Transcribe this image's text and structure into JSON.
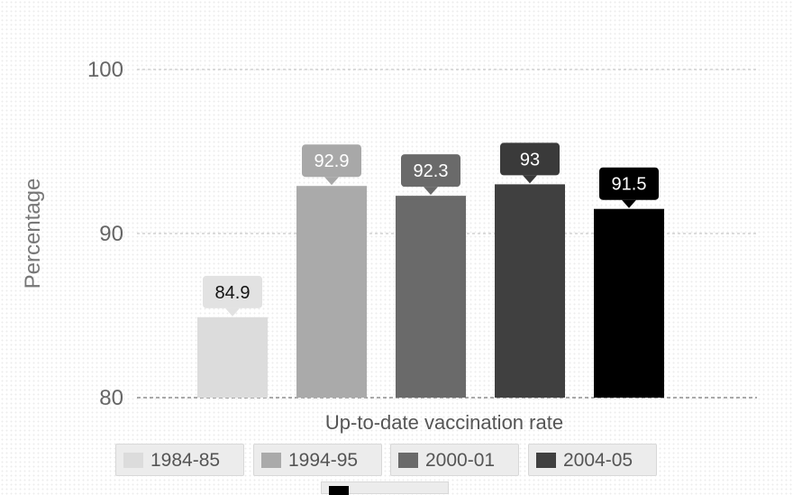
{
  "chart_data": {
    "type": "bar",
    "title": "",
    "xlabel": "Up-to-date vaccination rate",
    "ylabel": "Percentage",
    "ylim": [
      80,
      100
    ],
    "yticks": [
      "80",
      "90",
      "100"
    ],
    "grid": true,
    "legend_position": "bottom",
    "categories": [
      "Up-to-date vaccination rate"
    ],
    "series": [
      {
        "name": "1984-85",
        "values": [
          84.9
        ],
        "label": "84.9",
        "color": "#dcdcdc",
        "label_color": "#e2e2e2",
        "label_text_color": "#111111"
      },
      {
        "name": "1994-95",
        "values": [
          92.9
        ],
        "label": "92.9",
        "color": "#aaaaaa",
        "label_color": "#a8a8a8",
        "label_text_color": "#ffffff"
      },
      {
        "name": "2000-01",
        "values": [
          92.3
        ],
        "label": "92.3",
        "color": "#6a6a6a",
        "label_color": "#6a6a6a",
        "label_text_color": "#ffffff"
      },
      {
        "name": "2004-05",
        "values": [
          93
        ],
        "label": "93",
        "color": "#404040",
        "label_color": "#3a3a3a",
        "label_text_color": "#ffffff"
      },
      {
        "name": "",
        "values": [
          91.5
        ],
        "label": "91.5",
        "color": "#000000",
        "label_color": "#000000",
        "label_text_color": "#ffffff"
      }
    ]
  }
}
